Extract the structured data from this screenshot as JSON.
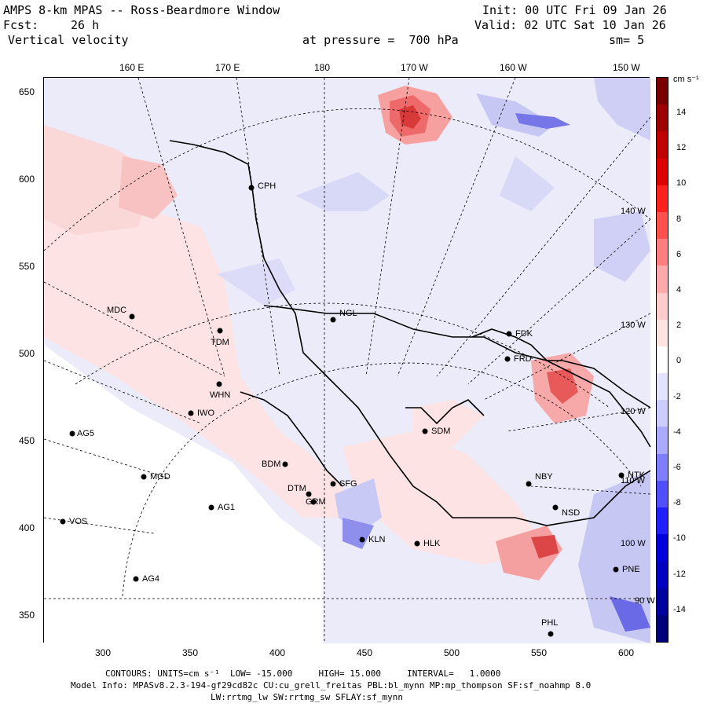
{
  "header": {
    "title": "AMPS 8-km MPAS -- Ross-Beardmore Window",
    "fcst_label": "Fcst:",
    "fcst_value": "26 h",
    "field": "Vertical velocity",
    "init": "Init: 00 UTC Fri 09 Jan 26",
    "valid": "Valid: 02 UTC Sat 10 Jan 26",
    "pressure": "at pressure =  700 hPa",
    "smooth": "sm= 5"
  },
  "top_ticks": [
    "160 E",
    "170 E",
    "180",
    "170 W",
    "160 W",
    "150 W"
  ],
  "left_ticks": [
    "650",
    "600",
    "550",
    "500",
    "450",
    "400",
    "350"
  ],
  "bottom_ticks": [
    "300",
    "350",
    "400",
    "450",
    "500",
    "550",
    "600"
  ],
  "inner_labels": [
    "140 W",
    "130 W",
    "120 W",
    "110 W",
    "100 W",
    "90 W"
  ],
  "colorbar": {
    "units": "cm s⁻¹",
    "labels": [
      "14",
      "12",
      "10",
      "8",
      "6",
      "4",
      "2",
      "0",
      "-2",
      "-4",
      "-6",
      "-8",
      "-10",
      "-12",
      "-14"
    ],
    "colors": [
      "#7a0000",
      "#9e0000",
      "#c00000",
      "#dd0000",
      "#ff2020",
      "#ff5050",
      "#ff7e7e",
      "#ffaaaa",
      "#ffcccc",
      "#ffe3e3",
      "#ffffff",
      "#e3e3ff",
      "#ccccff",
      "#aaaaff",
      "#7e7eff",
      "#5050ff",
      "#2020ff",
      "#0000dd",
      "#0000c0",
      "#00009e",
      "#00007a"
    ]
  },
  "stations": [
    {
      "name": "CPH"
    },
    {
      "name": "NGL"
    },
    {
      "name": "FDK"
    },
    {
      "name": "MDC"
    },
    {
      "name": "TDM"
    },
    {
      "name": "FRD"
    },
    {
      "name": "WHN"
    },
    {
      "name": "IWO"
    },
    {
      "name": "SDM"
    },
    {
      "name": "AG5"
    },
    {
      "name": "BDM"
    },
    {
      "name": "MGD"
    },
    {
      "name": "SFG"
    },
    {
      "name": "DTM"
    },
    {
      "name": "NBY"
    },
    {
      "name": "GRM"
    },
    {
      "name": "AG1"
    },
    {
      "name": "NSD"
    },
    {
      "name": "VOS"
    },
    {
      "name": "KLN"
    },
    {
      "name": "HLK"
    },
    {
      "name": "NTK"
    },
    {
      "name": "AG4"
    },
    {
      "name": "PNE"
    },
    {
      "name": "PHL"
    }
  ],
  "footer": {
    "contours": "CONTOURS: UNITS=cm s⁻¹  LOW= -15.000     HIGH= 15.000     INTERVAL=   1.0000",
    "model_info": "Model Info: MPASv8.2.3-194-gf29cd82c CU:cu_grell_freitas PBL:bl_mynn MP:mp_thompson SF:sf_noahmp 8.0",
    "model_info2": "LW:rrtmg_lw SW:rrtmg_sw SFLAY:sf_mynn"
  }
}
